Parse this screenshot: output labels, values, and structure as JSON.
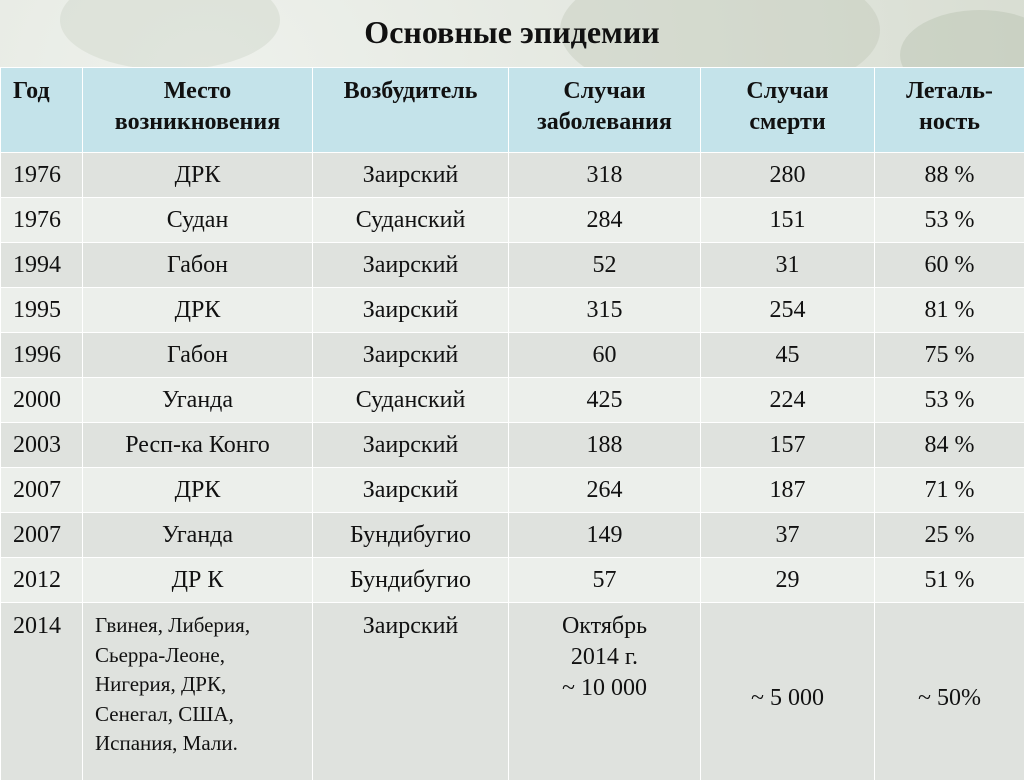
{
  "title": "Основные эпидемии",
  "headers": {
    "year": "Год",
    "place": "Место\nвозникновения",
    "pathogen": "Возбудитель",
    "cases": "Случаи\nзаболевания",
    "deaths": "Случаи\nсмерти",
    "lethality": "Леталь-\nность"
  },
  "rows": [
    {
      "year": "1976",
      "place": "ДРК",
      "pathogen": "Заирский",
      "cases": "318",
      "deaths": "280",
      "lethality": "88 %"
    },
    {
      "year": "1976",
      "place": "Судан",
      "pathogen": "Суданский",
      "cases": "284",
      "deaths": "151",
      "lethality": "53 %"
    },
    {
      "year": "1994",
      "place": "Габон",
      "pathogen": "Заирский",
      "cases": "52",
      "deaths": "31",
      "lethality": "60 %"
    },
    {
      "year": "1995",
      "place": "ДРК",
      "pathogen": "Заирский",
      "cases": "315",
      "deaths": "254",
      "lethality": "81 %"
    },
    {
      "year": "1996",
      "place": "Габон",
      "pathogen": "Заирский",
      "cases": "60",
      "deaths": "45",
      "lethality": "75 %"
    },
    {
      "year": "2000",
      "place": "Уганда",
      "pathogen": "Суданский",
      "cases": "425",
      "deaths": "224",
      "lethality": "53 %"
    },
    {
      "year": "2003",
      "place": "Респ-ка Конго",
      "pathogen": "Заирский",
      "cases": "188",
      "deaths": "157",
      "lethality": "84 %"
    },
    {
      "year": "2007",
      "place": "ДРК",
      "pathogen": "Заирский",
      "cases": "264",
      "deaths": "187",
      "lethality": "71 %"
    },
    {
      "year": "2007",
      "place": "Уганда",
      "pathogen": "Бундибугио",
      "cases": "149",
      "deaths": "37",
      "lethality": "25 %"
    },
    {
      "year": "2012",
      "place": "ДР К",
      "pathogen": "Бундибугио",
      "cases": "57",
      "deaths": "29",
      "lethality": "51 %"
    },
    {
      "year": "2014",
      "place": "Гвинея, Либерия,\nСьерра-Леоне,\nНигерия, ДРК,\nСенегал, США,\nИспания,  Мали.",
      "pathogen": "Заирский",
      "cases": "Октябрь\n2014 г.\n~ 10 000",
      "deaths": "~ 5 000",
      "lethality": "~ 50%"
    }
  ]
}
